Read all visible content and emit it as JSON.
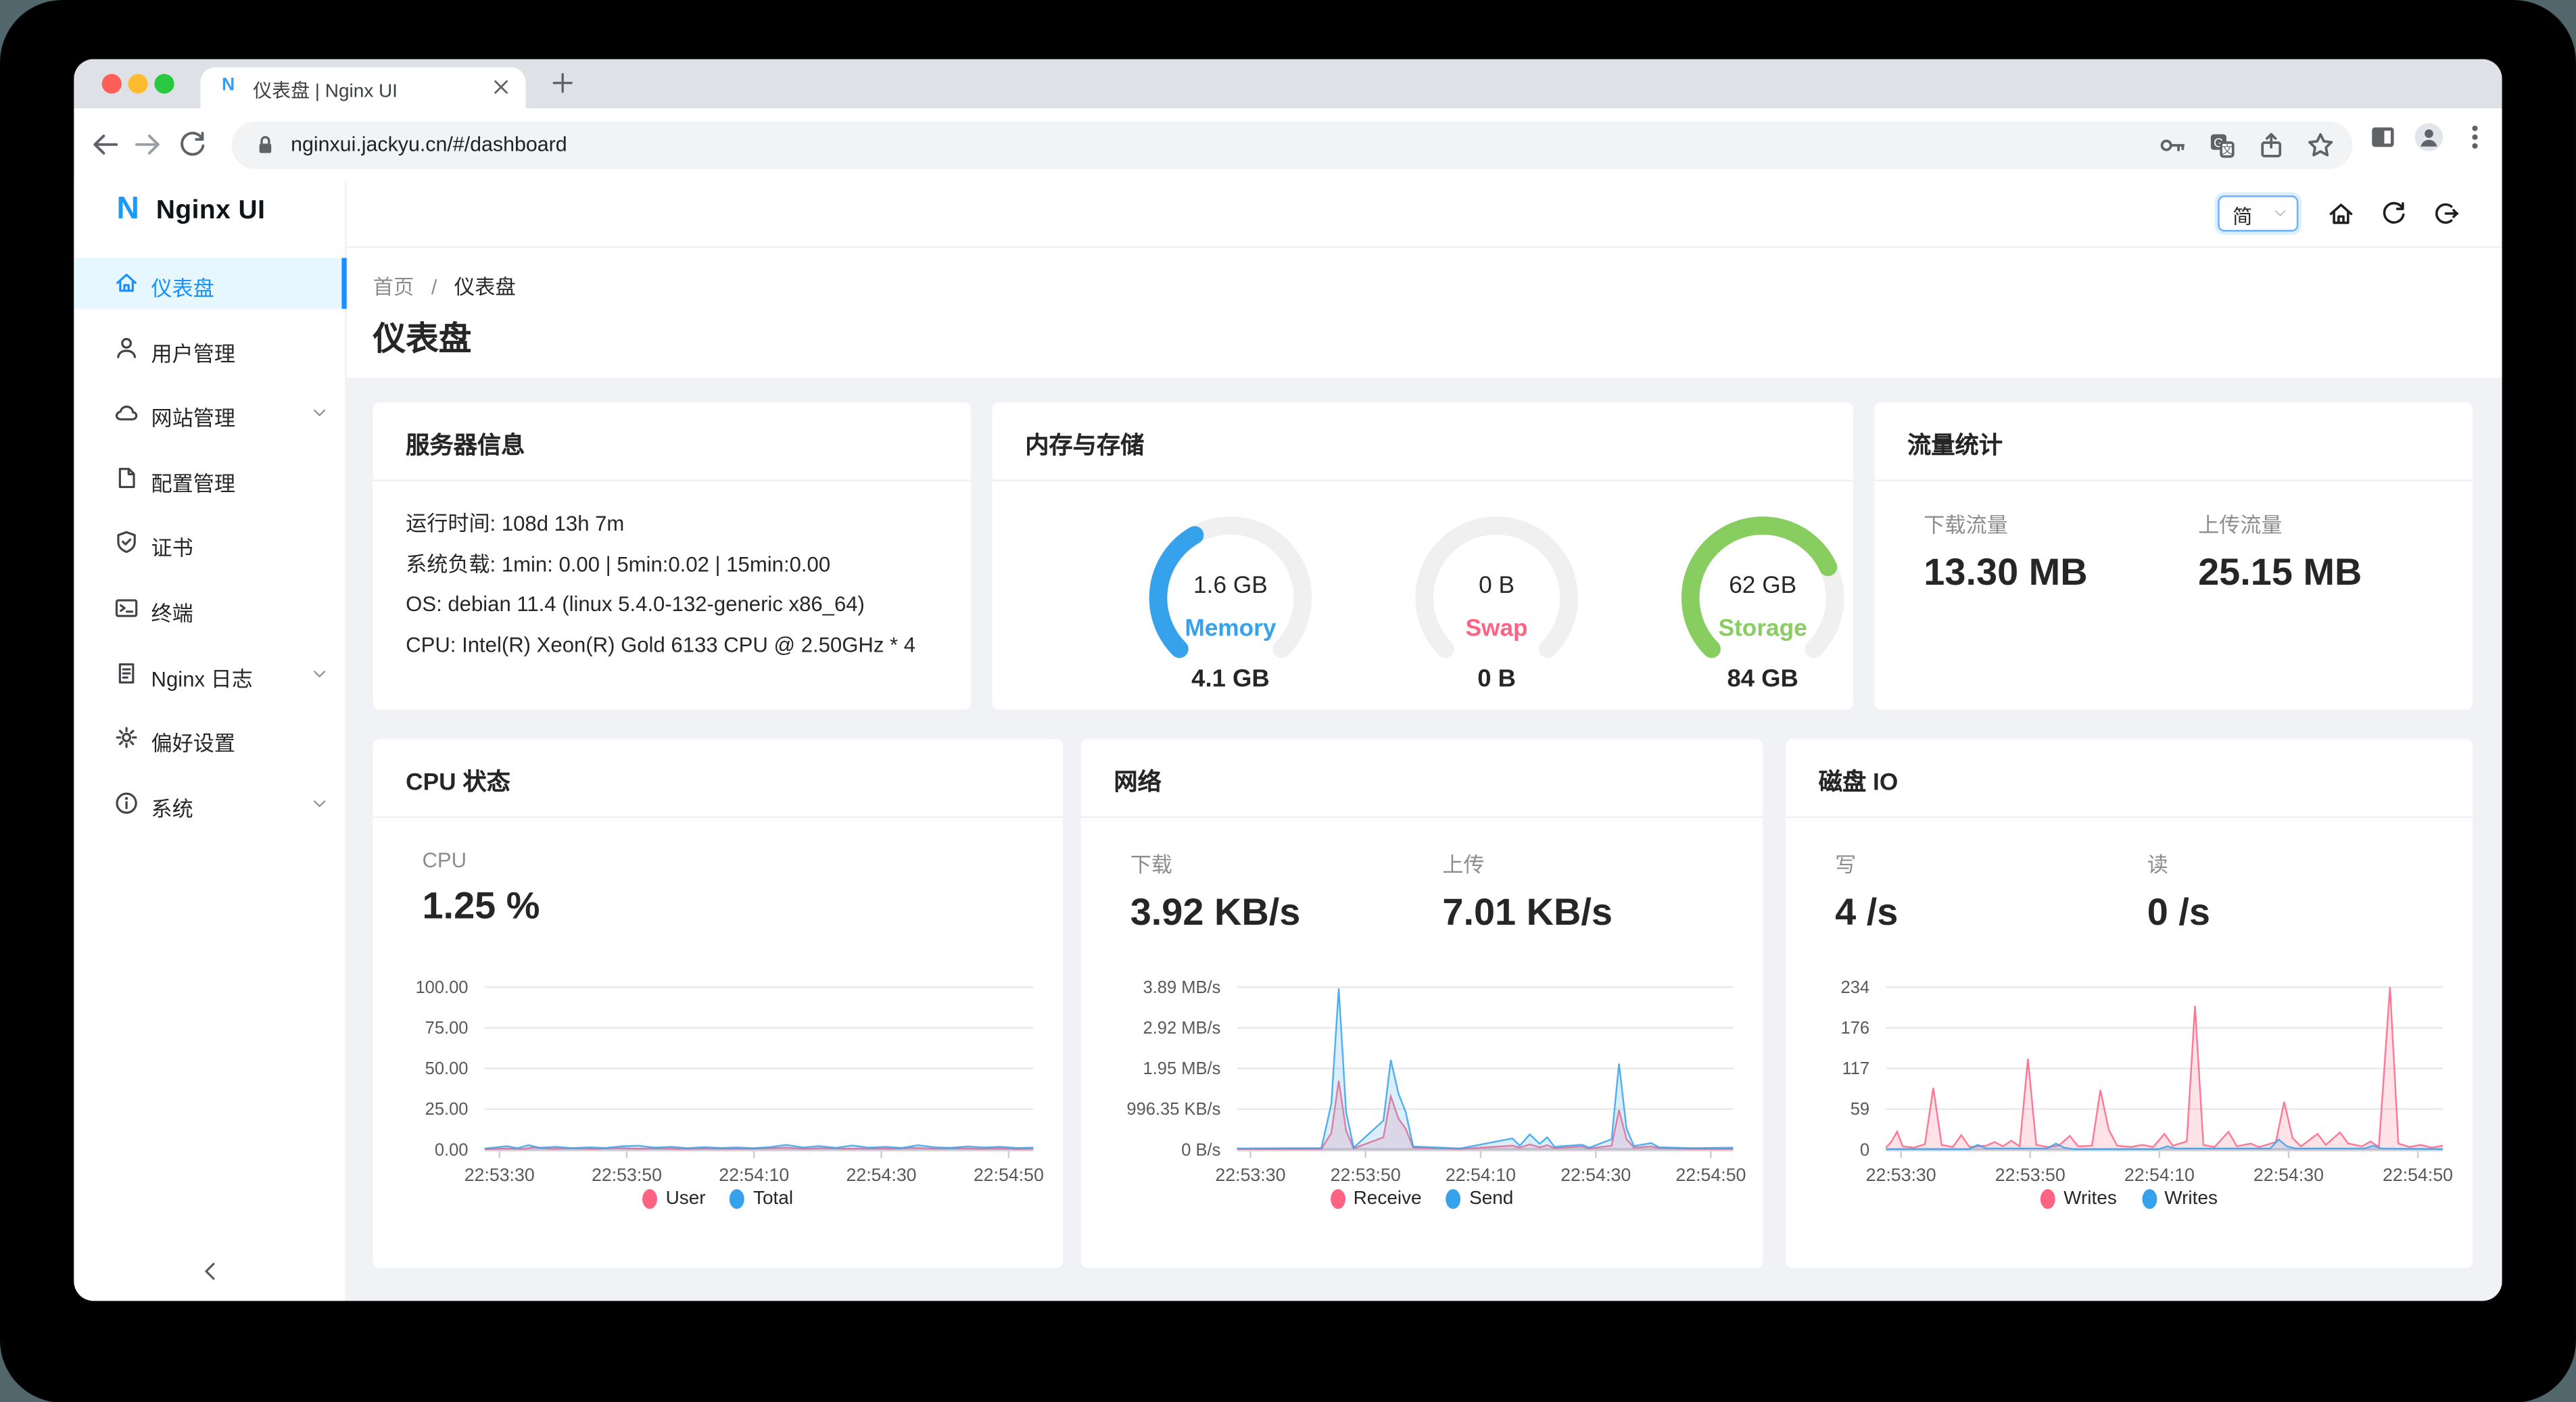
{
  "browser": {
    "tab_title": "仪表盘 | Nginx UI",
    "favicon_letter": "N",
    "url": "nginxui.jackyu.cn/#/dashboard",
    "traffic_light_colors": [
      "#ff5f57",
      "#febc2e",
      "#28c840"
    ],
    "toolbar_icons": [
      "back-icon",
      "forward-icon",
      "reload-icon",
      "lock-icon",
      "key-icon",
      "translate-icon",
      "share-icon",
      "star-icon",
      "side-panel-icon",
      "avatar-icon",
      "kebab-menu-icon"
    ]
  },
  "header": {
    "logo_letter": "N",
    "logo_text": "Nginx UI",
    "language": "简",
    "icons": [
      "home-icon",
      "refresh-icon",
      "logout-icon"
    ]
  },
  "sidebar": {
    "items": [
      {
        "label": "仪表盘",
        "icon": "home",
        "active": true,
        "expandable": false
      },
      {
        "label": "用户管理",
        "icon": "user",
        "active": false,
        "expandable": false
      },
      {
        "label": "网站管理",
        "icon": "cloud",
        "active": false,
        "expandable": true
      },
      {
        "label": "配置管理",
        "icon": "file",
        "active": false,
        "expandable": false
      },
      {
        "label": "证书",
        "icon": "safety",
        "active": false,
        "expandable": false
      },
      {
        "label": "终端",
        "icon": "terminal",
        "active": false,
        "expandable": false
      },
      {
        "label": "Nginx 日志",
        "icon": "log",
        "active": false,
        "expandable": true
      },
      {
        "label": "偏好设置",
        "icon": "gear",
        "active": false,
        "expandable": false
      },
      {
        "label": "系统",
        "icon": "info",
        "active": false,
        "expandable": true
      }
    ]
  },
  "page": {
    "breadcrumb": {
      "home": "首页",
      "sep": "/",
      "current": "仪表盘"
    },
    "title": "仪表盘"
  },
  "cards": {
    "server_info": {
      "title": "服务器信息",
      "lines": [
        "运行时间: 108d 13h 7m",
        "系统负载: 1min: 0.00 | 5min:0.02 | 15min:0.00",
        "OS: debian 11.4 (linux 5.4.0-132-generic x86_64)",
        "CPU: Intel(R) Xeon(R) Gold 6133 CPU @ 2.50GHz * 4"
      ]
    },
    "memory_storage": {
      "title": "内存与存储",
      "gauges": [
        {
          "name": "Memory",
          "used": "1.6 GB",
          "total": "4.1 GB",
          "fraction": 0.39,
          "color": "#36a2eb"
        },
        {
          "name": "Swap",
          "used": "0 B",
          "total": "0 B",
          "fraction": 0,
          "color": "#ff6384"
        },
        {
          "name": "Storage",
          "used": "62 GB",
          "total": "84 GB",
          "fraction": 0.74,
          "color": "#88cd60"
        }
      ]
    },
    "traffic": {
      "title": "流量统计",
      "stats": [
        {
          "label": "下载流量",
          "value": "13.30 MB"
        },
        {
          "label": "上传流量",
          "value": "25.15 MB"
        }
      ]
    },
    "cpu": {
      "title": "CPU 状态",
      "stats": [
        {
          "label": "CPU",
          "value": "1.25 %"
        }
      ]
    },
    "network": {
      "title": "网络",
      "stats": [
        {
          "label": "下载",
          "value": "3.92 KB/s"
        },
        {
          "label": "上传",
          "value": "7.01 KB/s"
        }
      ]
    },
    "disk": {
      "title": "磁盘 IO",
      "stats": [
        {
          "label": "写",
          "value": "4 /s"
        },
        {
          "label": "读",
          "value": "0 /s"
        }
      ]
    }
  },
  "chart_data": [
    {
      "type": "area",
      "title": "CPU 状态",
      "ylabel": "percent",
      "y_ticks": [
        "100.00",
        "75.00",
        "50.00",
        "25.00",
        "0.00"
      ],
      "y_max": 100,
      "x_ticks": [
        "22:53:30",
        "22:53:50",
        "22:54:10",
        "22:54:30",
        "22:54:50"
      ],
      "x_tick_fracs": [
        2.7,
        25.9,
        49.1,
        72.3,
        95.5
      ],
      "grid": true,
      "legend_position": "bottom",
      "series": [
        {
          "name": "User",
          "color": "#ff6384",
          "points": [
            [
              0,
              0.3
            ],
            [
              4,
              0.8
            ],
            [
              7,
              0.5
            ],
            [
              9,
              1.6
            ],
            [
              12,
              0.6
            ],
            [
              16,
              0.9
            ],
            [
              20,
              0.5
            ],
            [
              24,
              1.1
            ],
            [
              28,
              0.7
            ],
            [
              32,
              0.9
            ],
            [
              36,
              0.5
            ],
            [
              40,
              0.8
            ],
            [
              44,
              0.6
            ],
            [
              48,
              0.7
            ],
            [
              52,
              0.9
            ],
            [
              55,
              1.4
            ],
            [
              58,
              0.6
            ],
            [
              62,
              1.0
            ],
            [
              66,
              0.7
            ],
            [
              70,
              0.8
            ],
            [
              74,
              0.6
            ],
            [
              78,
              1.2
            ],
            [
              82,
              0.7
            ],
            [
              86,
              0.9
            ],
            [
              90,
              0.6
            ],
            [
              94,
              0.8
            ],
            [
              97,
              0.5
            ],
            [
              100,
              0.6
            ]
          ]
        },
        {
          "name": "Total",
          "color": "#36a2eb",
          "points": [
            [
              0,
              0.8
            ],
            [
              2,
              1.4
            ],
            [
              4,
              2.2
            ],
            [
              6,
              1.0
            ],
            [
              8,
              2.8
            ],
            [
              10,
              1.2
            ],
            [
              13,
              1.8
            ],
            [
              16,
              1.0
            ],
            [
              19,
              1.5
            ],
            [
              22,
              1.1
            ],
            [
              25,
              2.1
            ],
            [
              28,
              2.5
            ],
            [
              31,
              1.3
            ],
            [
              34,
              1.8
            ],
            [
              37,
              1.0
            ],
            [
              40,
              1.6
            ],
            [
              43,
              1.1
            ],
            [
              46,
              1.4
            ],
            [
              49,
              1.0
            ],
            [
              52,
              1.6
            ],
            [
              55,
              3.0
            ],
            [
              58,
              1.4
            ],
            [
              61,
              2.2
            ],
            [
              64,
              1.2
            ],
            [
              67,
              2.6
            ],
            [
              70,
              1.3
            ],
            [
              73,
              1.8
            ],
            [
              76,
              1.1
            ],
            [
              79,
              2.8
            ],
            [
              82,
              1.5
            ],
            [
              85,
              1.2
            ],
            [
              88,
              2.0
            ],
            [
              91,
              1.4
            ],
            [
              94,
              1.8
            ],
            [
              97,
              1.1
            ],
            [
              100,
              1.3
            ]
          ]
        }
      ]
    },
    {
      "type": "area",
      "title": "网络",
      "ylabel": "MB/s",
      "y_ticks": [
        "3.89 MB/s",
        "2.92 MB/s",
        "1.95 MB/s",
        "996.35 KB/s",
        "0 B/s"
      ],
      "y_max": 3.89,
      "x_ticks": [
        "22:53:30",
        "22:53:50",
        "22:54:10",
        "22:54:30",
        "22:54:50"
      ],
      "x_tick_fracs": [
        2.7,
        25.9,
        49.1,
        72.3,
        95.5
      ],
      "grid": true,
      "legend_position": "bottom",
      "series": [
        {
          "name": "Receive",
          "color": "#ff6384",
          "points": [
            [
              0,
              0.02
            ],
            [
              17,
              0.02
            ],
            [
              19,
              0.4
            ],
            [
              20.5,
              1.65
            ],
            [
              22,
              0.45
            ],
            [
              23.5,
              0.03
            ],
            [
              29.5,
              0.3
            ],
            [
              31,
              1.28
            ],
            [
              32.5,
              0.75
            ],
            [
              34,
              0.5
            ],
            [
              35.5,
              0.05
            ],
            [
              45,
              0.02
            ],
            [
              55.5,
              0.1
            ],
            [
              57,
              0.05
            ],
            [
              59,
              0.13
            ],
            [
              61,
              0.06
            ],
            [
              62.5,
              0.11
            ],
            [
              64,
              0.04
            ],
            [
              69.5,
              0.08
            ],
            [
              71,
              0.03
            ],
            [
              75.5,
              0.1
            ],
            [
              77,
              0.95
            ],
            [
              78.5,
              0.25
            ],
            [
              80,
              0.05
            ],
            [
              83.5,
              0.08
            ],
            [
              85,
              0.04
            ],
            [
              92,
              0.02
            ],
            [
              100,
              0.02
            ]
          ]
        },
        {
          "name": "Send",
          "color": "#36a2eb",
          "points": [
            [
              0,
              0.03
            ],
            [
              17,
              0.04
            ],
            [
              19,
              1.1
            ],
            [
              20.5,
              3.86
            ],
            [
              22,
              0.9
            ],
            [
              23.5,
              0.05
            ],
            [
              29.5,
              0.7
            ],
            [
              31,
              2.15
            ],
            [
              32.5,
              1.35
            ],
            [
              34,
              0.9
            ],
            [
              35.5,
              0.08
            ],
            [
              45,
              0.03
            ],
            [
              55.5,
              0.27
            ],
            [
              57,
              0.1
            ],
            [
              59,
              0.37
            ],
            [
              61,
              0.14
            ],
            [
              62.5,
              0.3
            ],
            [
              64,
              0.07
            ],
            [
              69.5,
              0.12
            ],
            [
              71,
              0.05
            ],
            [
              75.5,
              0.25
            ],
            [
              77,
              2.06
            ],
            [
              78.5,
              0.5
            ],
            [
              80,
              0.09
            ],
            [
              83.5,
              0.16
            ],
            [
              85,
              0.06
            ],
            [
              92,
              0.04
            ],
            [
              100,
              0.05
            ]
          ]
        }
      ]
    },
    {
      "type": "area",
      "title": "磁盘 IO",
      "ylabel": "ops/s",
      "y_ticks": [
        "234",
        "176",
        "117",
        "59",
        "0"
      ],
      "y_max": 234,
      "x_ticks": [
        "22:53:30",
        "22:53:50",
        "22:54:10",
        "22:54:30",
        "22:54:50"
      ],
      "x_tick_fracs": [
        2.7,
        25.9,
        49.1,
        72.3,
        95.5
      ],
      "grid": true,
      "legend_position": "bottom",
      "series": [
        {
          "name": "Writes",
          "color": "#ff6384",
          "points": [
            [
              0,
              3
            ],
            [
              1,
              12
            ],
            [
              2,
              26
            ],
            [
              3,
              5
            ],
            [
              5,
              3
            ],
            [
              7,
              8
            ],
            [
              8.5,
              89
            ],
            [
              10,
              7
            ],
            [
              12,
              4
            ],
            [
              13.5,
              21
            ],
            [
              15,
              4
            ],
            [
              18,
              6
            ],
            [
              19.5,
              11
            ],
            [
              21,
              5
            ],
            [
              22.5,
              13
            ],
            [
              24,
              5
            ],
            [
              25.5,
              131
            ],
            [
              27,
              7
            ],
            [
              29,
              4
            ],
            [
              31,
              6
            ],
            [
              33,
              20
            ],
            [
              34.5,
              5
            ],
            [
              37,
              6
            ],
            [
              38.5,
              86
            ],
            [
              40,
              29
            ],
            [
              41.5,
              6
            ],
            [
              44,
              4
            ],
            [
              46,
              7
            ],
            [
              48,
              4
            ],
            [
              50,
              23
            ],
            [
              51.5,
              6
            ],
            [
              54,
              12
            ],
            [
              55.5,
              207
            ],
            [
              57,
              7
            ],
            [
              59,
              4
            ],
            [
              61.5,
              26
            ],
            [
              63,
              5
            ],
            [
              65.5,
              9
            ],
            [
              67,
              4
            ],
            [
              70,
              11
            ],
            [
              71.5,
              69
            ],
            [
              73,
              17
            ],
            [
              74.5,
              5
            ],
            [
              77.5,
              23
            ],
            [
              79,
              7
            ],
            [
              81.5,
              25
            ],
            [
              83,
              9
            ],
            [
              85.5,
              5
            ],
            [
              87,
              12
            ],
            [
              88.5,
              4
            ],
            [
              90.5,
              234
            ],
            [
              92,
              9
            ],
            [
              94,
              4
            ],
            [
              96,
              7
            ],
            [
              98,
              3
            ],
            [
              100,
              6
            ]
          ]
        },
        {
          "name": "Writes",
          "color": "#36a2eb",
          "points": [
            [
              0,
              1
            ],
            [
              15,
              1
            ],
            [
              16.5,
              7
            ],
            [
              18,
              2
            ],
            [
              29,
              2
            ],
            [
              30.5,
              9
            ],
            [
              32,
              3
            ],
            [
              33.5,
              1
            ],
            [
              49,
              1
            ],
            [
              50.5,
              5
            ],
            [
              52,
              2
            ],
            [
              69,
              2
            ],
            [
              70.5,
              15
            ],
            [
              72,
              5
            ],
            [
              73.5,
              2
            ],
            [
              86,
              2
            ],
            [
              87.5,
              6
            ],
            [
              89,
              2
            ],
            [
              100,
              1
            ]
          ]
        }
      ]
    }
  ]
}
